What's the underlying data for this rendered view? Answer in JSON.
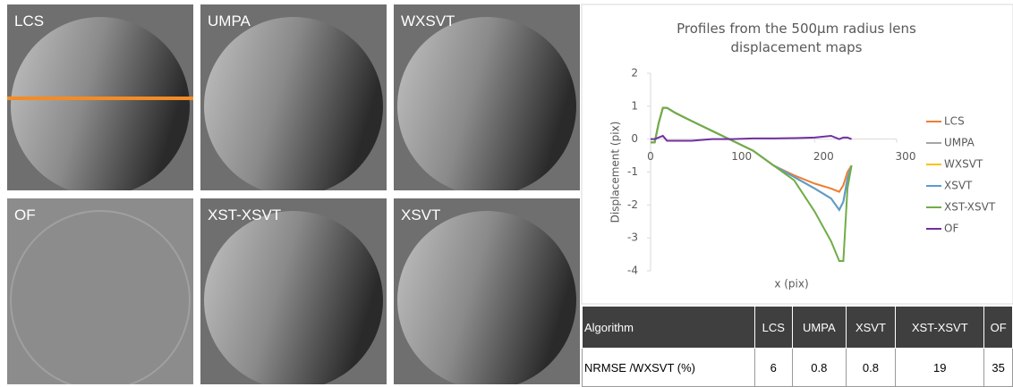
{
  "panels": [
    {
      "label": "LCS"
    },
    {
      "label": "UMPA"
    },
    {
      "label": "WXSVT"
    },
    {
      "label": "OF"
    },
    {
      "label": "XST-XSVT"
    },
    {
      "label": "XSVT"
    }
  ],
  "chart_data": {
    "type": "line",
    "title": "Profiles from the 500µm radius lens displacement maps",
    "x_label": "x (pix)",
    "y_label": "Displacement (pix)",
    "x": [
      0,
      5,
      10,
      15,
      20,
      30,
      50,
      75,
      100,
      125,
      150,
      175,
      200,
      220,
      230,
      235,
      240,
      245
    ],
    "xlim": [
      0,
      300
    ],
    "xticks": [
      0,
      100,
      200,
      300
    ],
    "ylim": [
      -4,
      2
    ],
    "yticks": [
      2,
      1,
      0,
      -1,
      -2,
      -3,
      -4
    ],
    "grid": false,
    "legend": "right",
    "series": [
      {
        "name": "LCS",
        "color": "#ed7d31",
        "values": [
          -0.1,
          -0.1,
          0.5,
          0.95,
          0.95,
          0.8,
          0.55,
          0.25,
          -0.05,
          -0.35,
          -0.8,
          -1.1,
          -1.35,
          -1.5,
          -1.6,
          -1.4,
          -1.0,
          -0.8
        ]
      },
      {
        "name": "UMPA",
        "color": "#a5a5a5",
        "values": [
          -0.1,
          -0.1,
          0.5,
          0.95,
          0.95,
          0.8,
          0.55,
          0.25,
          -0.05,
          -0.35,
          -0.8,
          -1.15,
          -1.5,
          -1.8,
          -2.15,
          -1.9,
          -1.2,
          -0.8
        ]
      },
      {
        "name": "WXSVT",
        "color": "#ffc000",
        "values": [
          -0.1,
          -0.1,
          0.5,
          0.95,
          0.95,
          0.8,
          0.55,
          0.25,
          -0.05,
          -0.35,
          -0.8,
          -1.15,
          -1.5,
          -1.8,
          -2.15,
          -1.9,
          -1.2,
          -0.8
        ]
      },
      {
        "name": "XSVT",
        "color": "#5b9bd5",
        "values": [
          -0.1,
          -0.1,
          0.5,
          0.95,
          0.95,
          0.8,
          0.55,
          0.25,
          -0.05,
          -0.35,
          -0.8,
          -1.15,
          -1.5,
          -1.8,
          -2.15,
          -1.9,
          -1.2,
          -0.8
        ]
      },
      {
        "name": "XST-XSVT",
        "color": "#70ad47",
        "values": [
          -0.1,
          -0.1,
          0.5,
          0.95,
          0.95,
          0.8,
          0.55,
          0.25,
          -0.05,
          -0.35,
          -0.8,
          -1.25,
          -2.2,
          -3.1,
          -3.7,
          -3.7,
          -1.5,
          -0.8
        ]
      },
      {
        "name": "OF",
        "color": "#7030a0",
        "values": [
          0,
          0,
          0.05,
          0.1,
          -0.05,
          -0.05,
          -0.05,
          0,
          0,
          0.02,
          0.02,
          0.03,
          0.05,
          0.1,
          0,
          0.05,
          0.05,
          0
        ]
      }
    ]
  },
  "table": {
    "header": [
      "Algorithm",
      "LCS",
      "UMPA",
      "XSVT",
      "XST-XSVT",
      "OF"
    ],
    "rows": [
      [
        "NRMSE /WXSVT (%)",
        "6",
        "0.8",
        "0.8",
        "19",
        "35"
      ]
    ]
  }
}
